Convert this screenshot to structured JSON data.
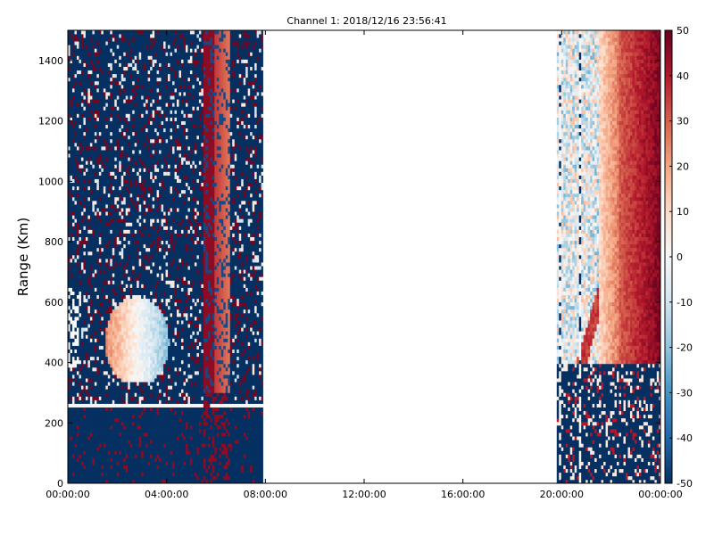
{
  "chart_data": {
    "type": "heatmap",
    "title": "Channel 1: 2018/12/16 23:56:41",
    "ylabel": "Range (Km)",
    "xlabel": "",
    "x_ticks": [
      "00:00:00",
      "04:00:00",
      "08:00:00",
      "12:00:00",
      "16:00:00",
      "20:00:00",
      "00:00:00"
    ],
    "y_ticks": [
      0,
      200,
      400,
      600,
      800,
      1000,
      1200,
      1400
    ],
    "xlim_hours": [
      0,
      24
    ],
    "ylim": [
      0,
      1500
    ],
    "grid": false,
    "colorbar": {
      "position": "right",
      "ticks": [
        50,
        40,
        30,
        20,
        10,
        0,
        -10,
        -20,
        -30,
        -40,
        -50
      ],
      "range": [
        -50,
        50
      ],
      "colormap": [
        "#053061",
        "#2166ac",
        "#4393c3",
        "#92c5de",
        "#d1e5f0",
        "#f7f7f7",
        "#fddbc7",
        "#f4a582",
        "#d6604d",
        "#b2182b",
        "#67001f"
      ]
    },
    "data_segments": [
      {
        "start_hour": 0.0,
        "end_hour": 7.9
      },
      {
        "start_hour": 19.8,
        "end_hour": 24.0
      }
    ],
    "notable_features": [
      {
        "hours": [
          1.5,
          4.0
        ],
        "range_km": [
          330,
          650
        ],
        "values": "positive to negative (about +20 to -20)"
      },
      {
        "hours": [
          5.5,
          6.6
        ],
        "range_km": [
          300,
          1500
        ],
        "values": "strong positive (+30 to +50)"
      },
      {
        "hours": [
          22.5,
          24.0
        ],
        "range_km": [
          400,
          1500
        ],
        "values": "strong positive (+30 to +50)"
      },
      {
        "hours": [
          20.5,
          22.5
        ],
        "range_km": [
          400,
          1500
        ],
        "values": "mixed, near zero to -20"
      }
    ],
    "background_value": -50
  }
}
